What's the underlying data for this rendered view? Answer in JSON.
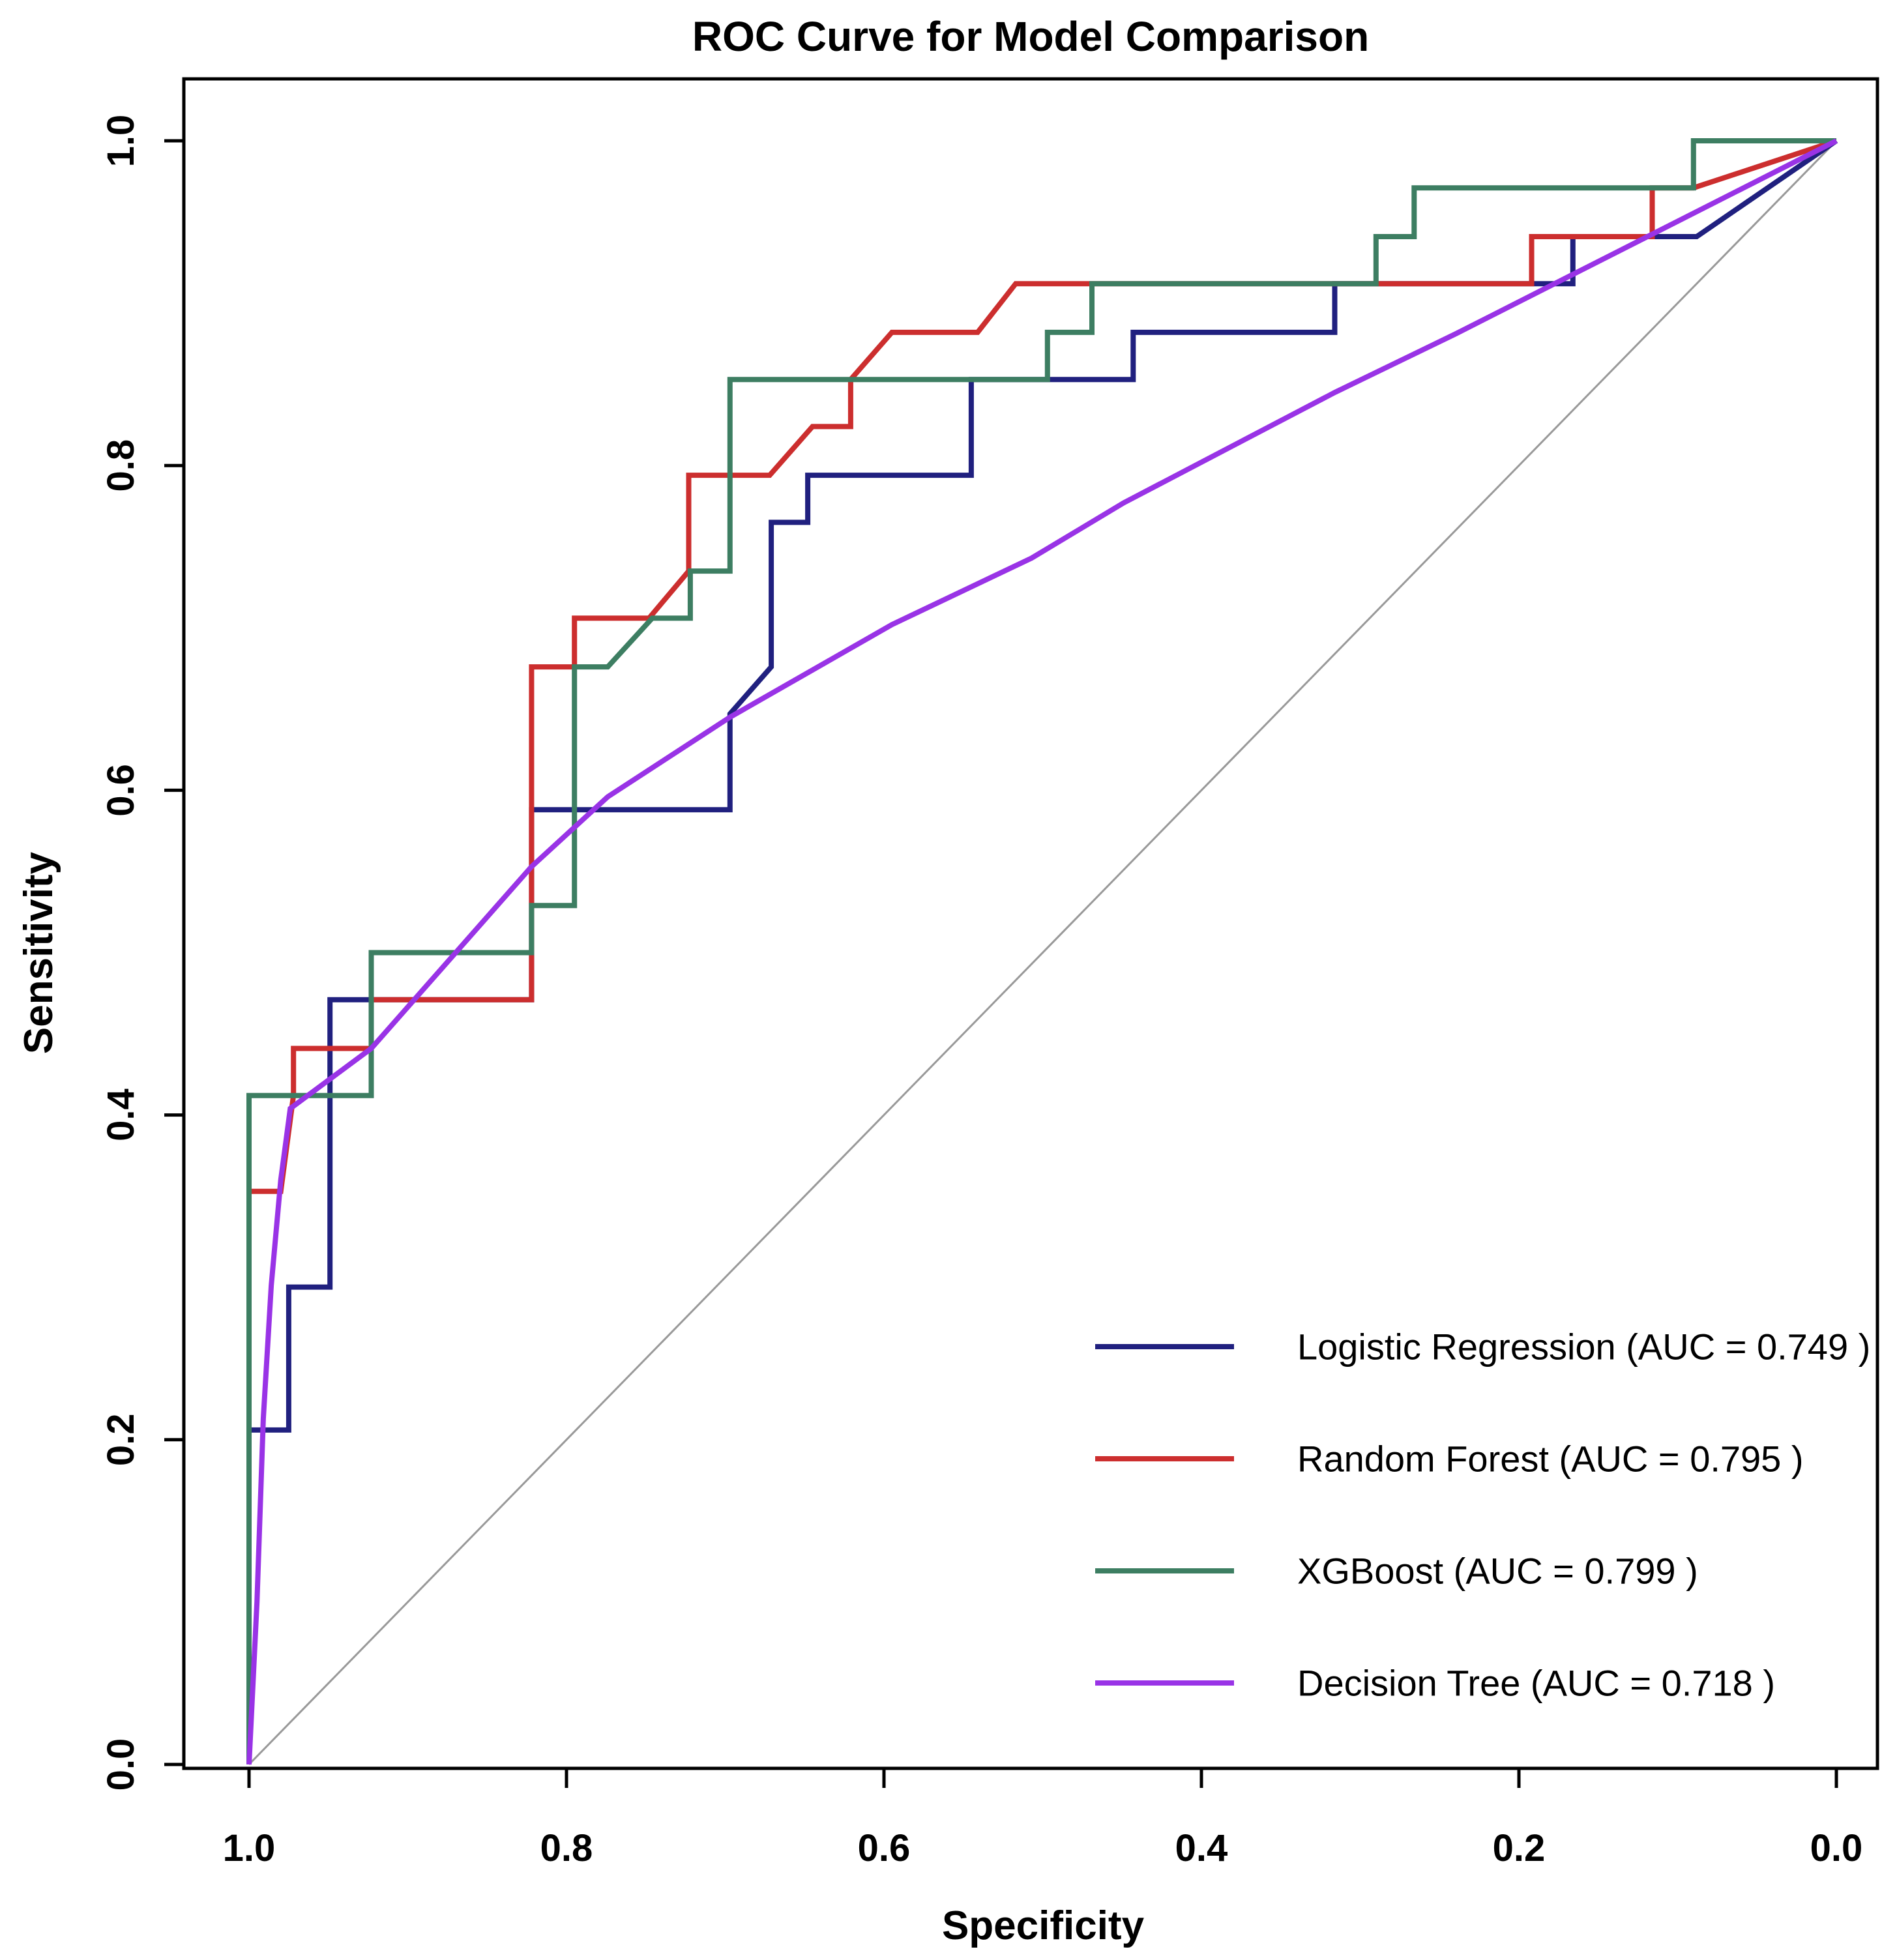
{
  "title": "ROC Curve for Model Comparison",
  "axes": {
    "x": {
      "label": "Specificity",
      "ticks": [
        "1.0",
        "0.8",
        "0.6",
        "0.4",
        "0.2",
        "0.0"
      ]
    },
    "y": {
      "label": "Sensitivity",
      "ticks": [
        "0.0",
        "0.2",
        "0.4",
        "0.6",
        "0.8",
        "1.0"
      ]
    }
  },
  "legend": {
    "position": "bottom-right",
    "items": [
      {
        "label": "Logistic Regression (AUC = 0.749 )",
        "color": "#20207f"
      },
      {
        "label": "Random Forest (AUC = 0.795 )",
        "color": "#cc2e2e"
      },
      {
        "label": "XGBoost (AUC = 0.799 )",
        "color": "#3d7e62"
      },
      {
        "label": "Decision Tree (AUC = 0.718 )",
        "color": "#9933e6"
      }
    ]
  },
  "chart_data": {
    "type": "line",
    "subtype": "roc-step-curves",
    "title": "ROC Curve for Model Comparison",
    "xlabel": "Specificity",
    "ylabel": "Sensitivity",
    "xlim": [
      1.0,
      0.0
    ],
    "ylim": [
      0.0,
      1.0
    ],
    "x_axis_reversed": true,
    "grid": false,
    "legend_position": "bottom-right",
    "reference_line": {
      "name": "chance-diagonal",
      "color": "#999999",
      "from_spec_sens": [
        1.0,
        0.0
      ],
      "to_spec_sens": [
        0.0,
        1.0
      ]
    },
    "series": [
      {
        "name": "Logistic Regression",
        "auc": 0.749,
        "color": "#20207f",
        "points_fpr_tpr": [
          [
            0,
            0
          ],
          [
            0,
            0.206
          ],
          [
            0.025,
            0.206
          ],
          [
            0.025,
            0.294
          ],
          [
            0.051,
            0.294
          ],
          [
            0.051,
            0.471
          ],
          [
            0.178,
            0.471
          ],
          [
            0.178,
            0.588
          ],
          [
            0.303,
            0.588
          ],
          [
            0.303,
            0.647
          ],
          [
            0.329,
            0.676
          ],
          [
            0.329,
            0.765
          ],
          [
            0.352,
            0.765
          ],
          [
            0.352,
            0.794
          ],
          [
            0.455,
            0.794
          ],
          [
            0.455,
            0.853
          ],
          [
            0.557,
            0.853
          ],
          [
            0.557,
            0.882
          ],
          [
            0.684,
            0.882
          ],
          [
            0.684,
            0.912
          ],
          [
            0.834,
            0.912
          ],
          [
            0.834,
            0.941
          ],
          [
            0.912,
            0.941
          ],
          [
            1,
            1
          ]
        ]
      },
      {
        "name": "Random Forest",
        "auc": 0.795,
        "color": "#cc2e2e",
        "points_fpr_tpr": [
          [
            0,
            0
          ],
          [
            0,
            0.353
          ],
          [
            0.02,
            0.353
          ],
          [
            0.028,
            0.412
          ],
          [
            0.028,
            0.441
          ],
          [
            0.077,
            0.441
          ],
          [
            0.077,
            0.471
          ],
          [
            0.178,
            0.471
          ],
          [
            0.178,
            0.676
          ],
          [
            0.205,
            0.676
          ],
          [
            0.205,
            0.706
          ],
          [
            0.252,
            0.706
          ],
          [
            0.277,
            0.735
          ],
          [
            0.277,
            0.794
          ],
          [
            0.328,
            0.794
          ],
          [
            0.355,
            0.824
          ],
          [
            0.379,
            0.824
          ],
          [
            0.379,
            0.853
          ],
          [
            0.405,
            0.882
          ],
          [
            0.459,
            0.882
          ],
          [
            0.483,
            0.912
          ],
          [
            0.808,
            0.912
          ],
          [
            0.808,
            0.941
          ],
          [
            0.884,
            0.941
          ],
          [
            0.884,
            0.971
          ],
          [
            0.91,
            0.971
          ],
          [
            1,
            1
          ]
        ]
      },
      {
        "name": "XGBoost",
        "auc": 0.799,
        "color": "#3d7e62",
        "points_fpr_tpr": [
          [
            0,
            0
          ],
          [
            0,
            0.412
          ],
          [
            0.077,
            0.412
          ],
          [
            0.077,
            0.5
          ],
          [
            0.178,
            0.5
          ],
          [
            0.178,
            0.529
          ],
          [
            0.205,
            0.529
          ],
          [
            0.205,
            0.676
          ],
          [
            0.226,
            0.676
          ],
          [
            0.254,
            0.706
          ],
          [
            0.278,
            0.706
          ],
          [
            0.278,
            0.735
          ],
          [
            0.303,
            0.735
          ],
          [
            0.303,
            0.853
          ],
          [
            0.503,
            0.853
          ],
          [
            0.503,
            0.882
          ],
          [
            0.531,
            0.882
          ],
          [
            0.531,
            0.912
          ],
          [
            0.71,
            0.912
          ],
          [
            0.71,
            0.941
          ],
          [
            0.734,
            0.941
          ],
          [
            0.734,
            0.971
          ],
          [
            0.91,
            0.971
          ],
          [
            0.91,
            1
          ],
          [
            1,
            1
          ]
        ]
      },
      {
        "name": "Decision Tree",
        "auc": 0.718,
        "color": "#9933e6",
        "points_fpr_tpr": [
          [
            0,
            0
          ],
          [
            0.005,
            0.1
          ],
          [
            0.009,
            0.213
          ],
          [
            0.014,
            0.295
          ],
          [
            0.02,
            0.36
          ],
          [
            0.026,
            0.404
          ],
          [
            0.077,
            0.441
          ],
          [
            0.178,
            0.553
          ],
          [
            0.226,
            0.596
          ],
          [
            0.303,
            0.645
          ],
          [
            0.405,
            0.702
          ],
          [
            0.493,
            0.743
          ],
          [
            0.551,
            0.777
          ],
          [
            0.684,
            0.845
          ],
          [
            0.76,
            0.881
          ],
          [
            1,
            1
          ]
        ]
      }
    ]
  }
}
